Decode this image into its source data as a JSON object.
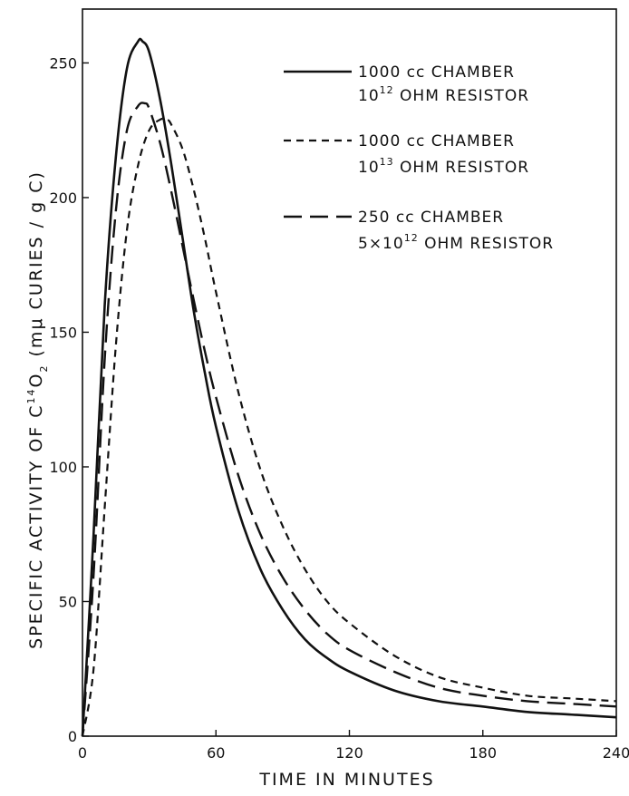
{
  "chart_data": {
    "type": "line",
    "xlabel": "TIME IN MINUTES",
    "ylabel_parts": {
      "pre": "SPECIFIC ACTIVITY OF C",
      "iso": "14",
      "mid": "O",
      "sub": "2",
      "post": " (mμ CURIES / g C)"
    },
    "xlim": [
      0,
      240
    ],
    "ylim": [
      0,
      270
    ],
    "x_ticks": [
      0,
      60,
      120,
      180,
      240
    ],
    "y_ticks": [
      0,
      50,
      100,
      150,
      200,
      250
    ],
    "grid": false,
    "legend_position": "top-right",
    "series": [
      {
        "line_style": "solid",
        "legend": {
          "l1": "1000 cc CHAMBER",
          "l2a": "10",
          "l2sup": "12",
          "l2b": " OHM RESISTOR"
        },
        "x": [
          0,
          5,
          10,
          15,
          20,
          25,
          27,
          30,
          35,
          40,
          45,
          50,
          55,
          60,
          70,
          80,
          90,
          100,
          110,
          120,
          140,
          160,
          180,
          200,
          220,
          240
        ],
        "y": [
          0,
          75,
          160,
          215,
          248,
          258,
          258,
          254,
          236,
          212,
          185,
          158,
          135,
          115,
          84,
          62,
          47,
          36,
          29,
          24,
          17,
          13,
          11,
          9,
          8,
          7
        ]
      },
      {
        "line_style": "short-dash",
        "legend": {
          "l1": "1000 cc CHAMBER",
          "l2a": "10",
          "l2sup": "13",
          "l2b": " OHM RESISTOR"
        },
        "x": [
          0,
          5,
          10,
          15,
          20,
          25,
          30,
          35,
          38,
          40,
          45,
          50,
          55,
          60,
          70,
          80,
          90,
          100,
          110,
          120,
          140,
          160,
          180,
          200,
          220,
          240
        ],
        "y": [
          0,
          25,
          85,
          145,
          188,
          212,
          225,
          229,
          229,
          227,
          218,
          203,
          185,
          165,
          128,
          99,
          78,
          62,
          50,
          42,
          30,
          22,
          18,
          15,
          14,
          13
        ]
      },
      {
        "line_style": "long-dash",
        "legend": {
          "l1": "250 cc CHAMBER",
          "l2a": "5×10",
          "l2sup": "12",
          "l2b": " OHM RESISTOR"
        },
        "x": [
          0,
          5,
          10,
          15,
          20,
          25,
          28,
          30,
          35,
          40,
          45,
          50,
          55,
          60,
          70,
          80,
          90,
          100,
          110,
          120,
          140,
          160,
          180,
          200,
          220,
          240
        ],
        "y": [
          0,
          60,
          140,
          195,
          225,
          234,
          235,
          233,
          220,
          202,
          182,
          162,
          143,
          126,
          97,
          75,
          59,
          47,
          38,
          32,
          24,
          18,
          15,
          13,
          12,
          11
        ]
      }
    ]
  }
}
